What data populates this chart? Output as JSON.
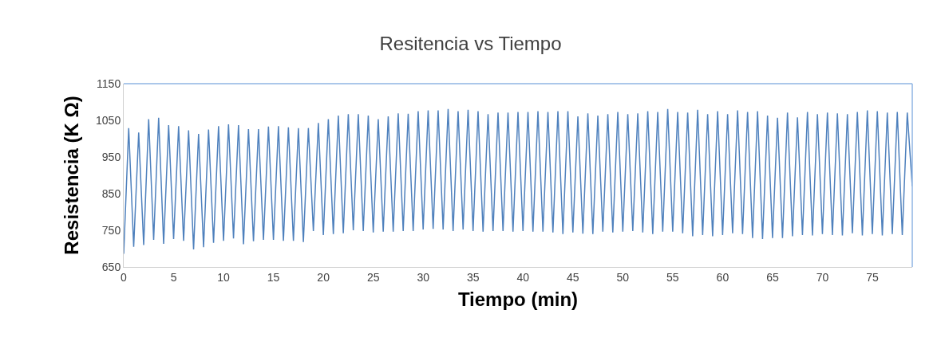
{
  "chart_data": {
    "type": "line",
    "title": "Resitencia vs Tiempo",
    "xlabel": "Tiempo (min)",
    "ylabel": "Resistencia (K Ω)",
    "x": [
      0,
      0.5,
      1,
      1.5,
      2,
      2.5,
      3,
      3.5,
      4,
      4.5,
      5,
      5.5,
      6,
      6.5,
      7,
      7.5,
      8,
      8.5,
      9,
      9.5,
      10,
      10.5,
      11,
      11.5,
      12,
      12.5,
      13,
      13.5,
      14,
      14.5,
      15,
      15.5,
      16,
      16.5,
      17,
      17.5,
      18,
      18.5,
      19,
      19.5,
      20,
      20.5,
      21,
      21.5,
      22,
      22.5,
      23,
      23.5,
      24,
      24.5,
      25,
      25.5,
      26,
      26.5,
      27,
      27.5,
      28,
      28.5,
      29,
      29.5,
      30,
      30.5,
      31,
      31.5,
      32,
      32.5,
      33,
      33.5,
      34,
      34.5,
      35,
      35.5,
      36,
      36.5,
      37,
      37.5,
      38,
      38.5,
      39,
      39.5,
      40,
      40.5,
      41,
      41.5,
      42,
      42.5,
      43,
      43.5,
      44,
      44.5,
      45,
      45.5,
      46,
      46.5,
      47,
      47.5,
      48,
      48.5,
      49,
      49.5,
      50,
      50.5,
      51,
      51.5,
      52,
      52.5,
      53,
      53.5,
      54,
      54.5,
      55,
      55.5,
      56,
      56.5,
      57,
      57.5,
      58,
      58.5,
      59,
      59.5,
      60,
      60.5,
      61,
      61.5,
      62,
      62.5,
      63,
      63.5,
      64,
      64.5,
      65,
      65.5,
      66,
      66.5,
      67,
      67.5,
      68,
      68.5,
      69,
      69.5,
      70,
      70.5,
      71,
      71.5,
      72,
      72.5,
      73,
      73.5,
      74,
      74.5,
      75,
      75.5,
      76,
      76.5,
      77,
      77.5,
      78,
      78.5,
      79
    ],
    "series": [
      {
        "color": "#4f81bd",
        "values": [
          686,
          1029,
          705,
          1017,
          710,
          1053,
          724,
          1057,
          713,
          1037,
          726,
          1034,
          721,
          1023,
          698,
          1013,
          704,
          1025,
          716,
          1034,
          721,
          1039,
          728,
          1037,
          712,
          1026,
          720,
          1026,
          724,
          1033,
          724,
          1034,
          721,
          1031,
          721,
          1029,
          718,
          1029,
          748,
          1043,
          737,
          1053,
          740,
          1063,
          742,
          1067,
          750,
          1067,
          748,
          1063,
          744,
          1053,
          746,
          1061,
          746,
          1069,
          748,
          1068,
          748,
          1075,
          752,
          1077,
          754,
          1077,
          752,
          1081,
          748,
          1075,
          752,
          1079,
          748,
          1075,
          746,
          1067,
          748,
          1071,
          748,
          1071,
          746,
          1073,
          748,
          1073,
          746,
          1075,
          746,
          1073,
          744,
          1075,
          740,
          1075,
          744,
          1061,
          741,
          1069,
          740,
          1063,
          746,
          1067,
          744,
          1073,
          746,
          1067,
          748,
          1069,
          744,
          1075,
          740,
          1073,
          746,
          1081,
          746,
          1073,
          742,
          1071,
          734,
          1079,
          737,
          1067,
          734,
          1075,
          737,
          1067,
          742,
          1077,
          740,
          1073,
          729,
          1075,
          726,
          1063,
          729,
          1057,
          729,
          1071,
          734,
          1058,
          737,
          1073,
          736,
          1067,
          740,
          1071,
          737,
          1069,
          736,
          1067,
          742,
          1073,
          736,
          1077,
          740,
          1075,
          736,
          1071,
          740,
          1073,
          737,
          1071,
          870
        ]
      }
    ],
    "xlim": [
      0,
      79
    ],
    "xticks": [
      0,
      5,
      10,
      15,
      20,
      25,
      30,
      35,
      40,
      45,
      50,
      55,
      60,
      65,
      70,
      75
    ],
    "ylim": [
      650,
      1150
    ],
    "yticks": [
      650,
      750,
      850,
      950,
      1050,
      1150
    ],
    "grid": false,
    "marker": "none",
    "line_style": "solid"
  }
}
